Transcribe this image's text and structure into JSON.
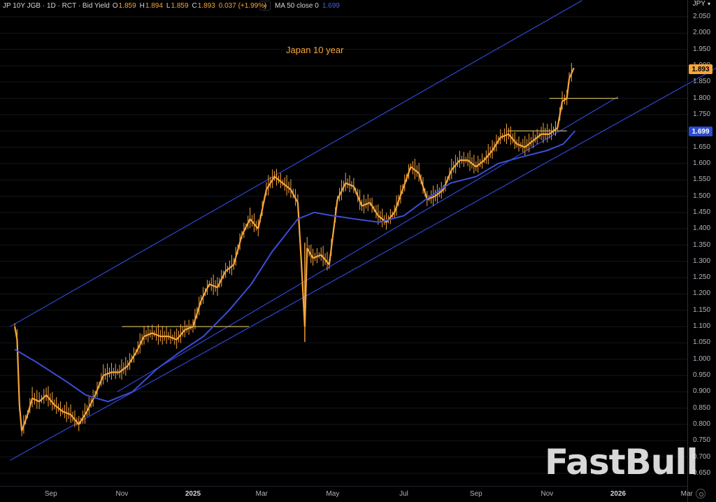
{
  "header": {
    "symbol": "JP 10Y JGB · 1D · RCT · Bid Yield",
    "o_label": "O",
    "o_value": "1.859",
    "h_label": "H",
    "h_value": "1.894",
    "l_label": "L",
    "l_value": "1.859",
    "c_label": "C",
    "c_value": "1.893",
    "change": "0.037 (+1.99%)",
    "collapse_icon": "chevron-left-icon",
    "ma_label": "MA 50 close 0",
    "ma_value": "1.699"
  },
  "currency": "JPY",
  "watermark": "FastBull",
  "colors": {
    "candle": "#f7a53b",
    "ma": "#3b4ed6",
    "channel": "#2f47d0",
    "level": "#c8b25a",
    "grid": "#14161c"
  },
  "chart_data": {
    "type": "line",
    "annotation": "Japan 10 year",
    "x_tick_labels": [
      "Sep",
      "Nov",
      "2025",
      "Mar",
      "May",
      "Jul",
      "Sep",
      "Nov",
      "2026",
      "Mar"
    ],
    "y_tick_labels": [
      "0.650",
      "0.700",
      "0.750",
      "0.800",
      "0.850",
      "0.900",
      "0.950",
      "1.000",
      "1.050",
      "1.100",
      "1.150",
      "1.200",
      "1.250",
      "1.300",
      "1.350",
      "1.400",
      "1.450",
      "1.500",
      "1.550",
      "1.600",
      "1.650",
      "1.700",
      "1.750",
      "1.800",
      "1.850",
      "1.900",
      "1.950",
      "2.000",
      "2.050"
    ],
    "ylim": [
      0.625,
      2.1
    ],
    "last_price": "1.893",
    "ma_last": "1.699",
    "series": [
      {
        "name": "JP 10Y JGB",
        "style": "candles",
        "x": [
          "2024-08-01",
          "2024-08-03",
          "2024-08-05",
          "2024-08-07",
          "2024-08-12",
          "2024-08-16",
          "2024-08-22",
          "2024-08-28",
          "2024-09-04",
          "2024-09-11",
          "2024-09-18",
          "2024-09-25",
          "2024-10-02",
          "2024-10-09",
          "2024-10-16",
          "2024-10-23",
          "2024-10-30",
          "2024-11-06",
          "2024-11-13",
          "2024-11-20",
          "2024-11-27",
          "2024-12-04",
          "2024-12-11",
          "2024-12-18",
          "2024-12-25",
          "2025-01-01",
          "2025-01-08",
          "2025-01-15",
          "2025-01-22",
          "2025-01-29",
          "2025-02-05",
          "2025-02-12",
          "2025-02-19",
          "2025-02-26",
          "2025-03-05",
          "2025-03-12",
          "2025-03-19",
          "2025-03-26",
          "2025-04-01",
          "2025-04-04",
          "2025-04-07",
          "2025-04-09",
          "2025-04-14",
          "2025-04-21",
          "2025-04-28",
          "2025-05-05",
          "2025-05-12",
          "2025-05-19",
          "2025-05-26",
          "2025-06-02",
          "2025-06-09",
          "2025-06-16",
          "2025-06-23",
          "2025-06-30",
          "2025-07-07",
          "2025-07-14",
          "2025-07-21",
          "2025-07-28",
          "2025-08-04",
          "2025-08-11",
          "2025-08-18",
          "2025-08-25",
          "2025-09-01",
          "2025-09-08",
          "2025-09-15",
          "2025-09-22",
          "2025-09-29",
          "2025-10-06",
          "2025-10-13",
          "2025-10-20",
          "2025-10-27",
          "2025-11-03",
          "2025-11-10",
          "2025-11-14",
          "2025-11-18",
          "2025-11-20",
          "2025-11-24"
        ],
        "values": [
          1.1,
          1.06,
          0.86,
          0.78,
          0.83,
          0.88,
          0.87,
          0.89,
          0.86,
          0.84,
          0.83,
          0.8,
          0.84,
          0.89,
          0.95,
          0.96,
          0.96,
          0.98,
          1.02,
          1.07,
          1.08,
          1.07,
          1.07,
          1.06,
          1.09,
          1.1,
          1.18,
          1.23,
          1.22,
          1.27,
          1.29,
          1.38,
          1.43,
          1.4,
          1.52,
          1.56,
          1.54,
          1.52,
          1.48,
          1.3,
          1.1,
          1.34,
          1.31,
          1.32,
          1.29,
          1.49,
          1.54,
          1.53,
          1.47,
          1.48,
          1.44,
          1.42,
          1.45,
          1.52,
          1.59,
          1.57,
          1.49,
          1.5,
          1.52,
          1.58,
          1.61,
          1.61,
          1.59,
          1.61,
          1.64,
          1.68,
          1.69,
          1.66,
          1.65,
          1.67,
          1.69,
          1.69,
          1.71,
          1.79,
          1.8,
          1.86,
          1.893
        ]
      },
      {
        "name": "MA 50 close 0",
        "style": "line",
        "x": [
          "2024-08-01",
          "2024-08-20",
          "2024-09-15",
          "2024-10-01",
          "2024-10-20",
          "2024-11-10",
          "2024-12-01",
          "2024-12-20",
          "2025-01-10",
          "2025-02-01",
          "2025-02-20",
          "2025-03-10",
          "2025-04-01",
          "2025-04-15",
          "2025-05-01",
          "2025-05-20",
          "2025-06-10",
          "2025-07-01",
          "2025-07-20",
          "2025-08-10",
          "2025-09-01",
          "2025-09-20",
          "2025-10-10",
          "2025-11-01",
          "2025-11-15",
          "2025-11-25"
        ],
        "values": [
          1.03,
          0.99,
          0.93,
          0.89,
          0.87,
          0.9,
          0.97,
          1.02,
          1.07,
          1.15,
          1.23,
          1.33,
          1.43,
          1.45,
          1.44,
          1.43,
          1.42,
          1.44,
          1.49,
          1.54,
          1.56,
          1.6,
          1.62,
          1.64,
          1.66,
          1.7
        ]
      }
    ],
    "levels": [
      {
        "value": 1.1,
        "from": "2024-11-01",
        "to": "2025-02-18"
      },
      {
        "value": 1.7,
        "from": "2025-09-28",
        "to": "2025-11-18"
      },
      {
        "value": 1.8,
        "from": "2025-11-03",
        "to": "2026-01-01"
      }
    ],
    "channel": {
      "lower": [
        {
          "x": "2024-07-28",
          "y": 0.69
        },
        {
          "x": "2026-03-31",
          "y": 1.902
        }
      ],
      "upper": [
        {
          "x": "2024-07-28",
          "y": 1.1
        },
        {
          "x": "2025-12-01",
          "y": 2.1
        }
      ],
      "support": [
        {
          "x": "2024-10-28",
          "y": 0.9
        },
        {
          "x": "2026-01-01",
          "y": 1.805
        }
      ]
    }
  }
}
